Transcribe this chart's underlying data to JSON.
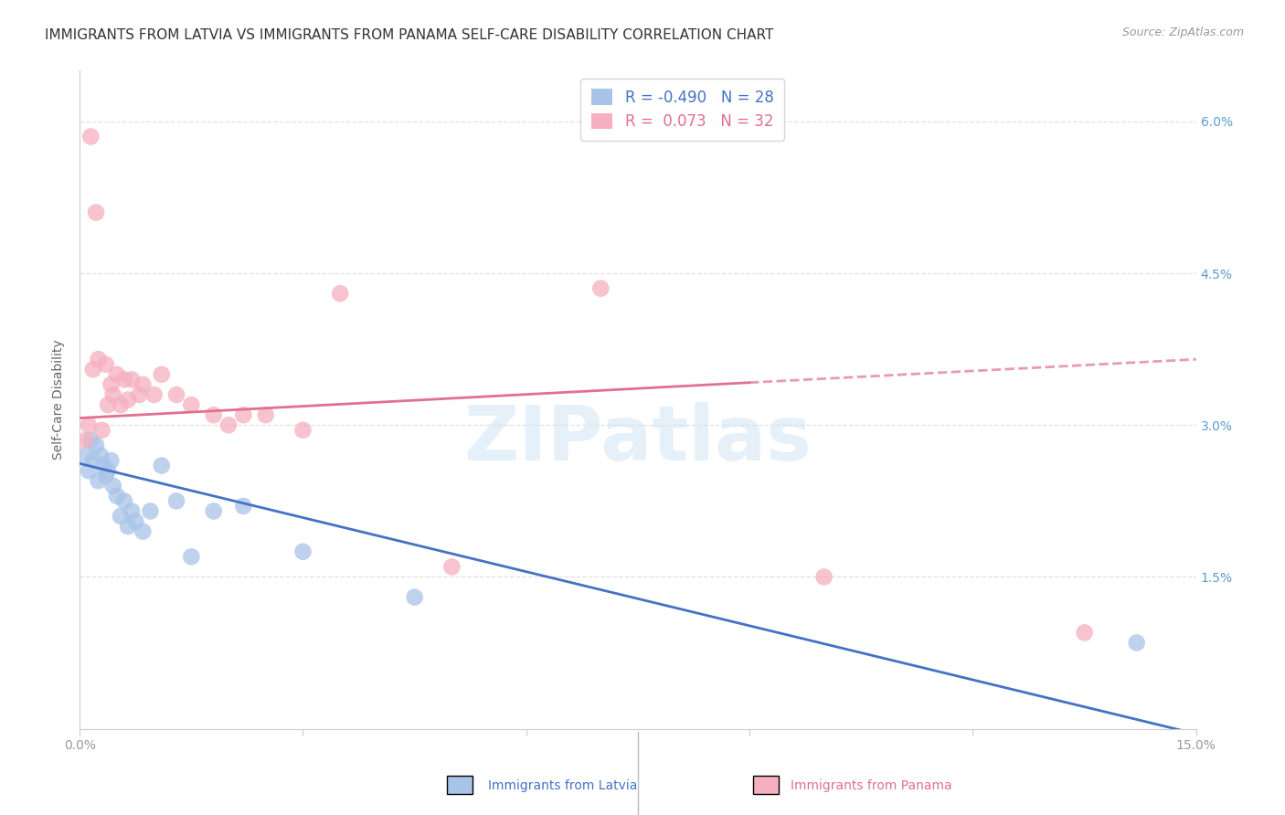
{
  "title": "IMMIGRANTS FROM LATVIA VS IMMIGRANTS FROM PANAMA SELF-CARE DISABILITY CORRELATION CHART",
  "source": "Source: ZipAtlas.com",
  "ylabel": "Self-Care Disability",
  "xlim": [
    0.0,
    15.0
  ],
  "ylim": [
    0.0,
    6.5
  ],
  "yticks": [
    1.5,
    3.0,
    4.5,
    6.0
  ],
  "ytick_labels": [
    "1.5%",
    "3.0%",
    "4.5%",
    "6.0%"
  ],
  "xticks": [
    0.0,
    3.0,
    6.0,
    9.0,
    12.0,
    15.0
  ],
  "xtick_labels": [
    "0.0%",
    "",
    "",
    "",
    "",
    "15.0%"
  ],
  "latvia_color": "#a8c4e8",
  "panama_color": "#f5afc0",
  "latvia_line_color": "#4472c4",
  "panama_line_color": "#e07090",
  "latvia_R": -0.49,
  "latvia_N": 28,
  "panama_R": 0.073,
  "panama_N": 32,
  "watermark": "ZIPatlas",
  "latvia_x": [
    0.08,
    0.12,
    0.15,
    0.18,
    0.22,
    0.25,
    0.28,
    0.32,
    0.35,
    0.38,
    0.42,
    0.45,
    0.5,
    0.55,
    0.6,
    0.65,
    0.7,
    0.75,
    0.85,
    0.95,
    1.1,
    1.3,
    1.5,
    1.8,
    2.2,
    3.0,
    4.5,
    14.2
  ],
  "latvia_y": [
    2.7,
    2.55,
    2.85,
    2.65,
    2.8,
    2.45,
    2.7,
    2.6,
    2.5,
    2.55,
    2.65,
    2.4,
    2.3,
    2.1,
    2.25,
    2.0,
    2.15,
    2.05,
    1.95,
    2.15,
    2.6,
    2.25,
    1.7,
    2.15,
    2.2,
    1.75,
    1.3,
    0.85
  ],
  "panama_x": [
    0.08,
    0.12,
    0.15,
    0.18,
    0.22,
    0.25,
    0.3,
    0.35,
    0.38,
    0.42,
    0.45,
    0.5,
    0.55,
    0.6,
    0.65,
    0.7,
    0.8,
    0.85,
    1.0,
    1.1,
    1.3,
    1.5,
    1.8,
    2.0,
    2.2,
    2.5,
    3.0,
    3.5,
    5.0,
    7.0,
    10.0,
    13.5
  ],
  "panama_y": [
    2.85,
    3.0,
    5.85,
    3.55,
    5.1,
    3.65,
    2.95,
    3.6,
    3.2,
    3.4,
    3.3,
    3.5,
    3.2,
    3.45,
    3.25,
    3.45,
    3.3,
    3.4,
    3.3,
    3.5,
    3.3,
    3.2,
    3.1,
    3.0,
    3.1,
    3.1,
    2.95,
    4.3,
    1.6,
    4.35,
    1.5,
    0.95
  ],
  "latvia_line_x0": 0.0,
  "latvia_line_y0": 2.62,
  "latvia_line_x1": 15.0,
  "latvia_line_y1": -0.05,
  "panama_line_x0": 0.0,
  "panama_line_y0": 3.07,
  "panama_line_x1": 9.0,
  "panama_line_y1": 3.42,
  "panama_dash_x0": 9.0,
  "panama_dash_y0": 3.42,
  "panama_dash_x1": 15.0,
  "panama_dash_y1": 3.65,
  "grid_color": "#e0e0e0",
  "background_color": "#ffffff",
  "title_fontsize": 11,
  "axis_label_fontsize": 10,
  "tick_fontsize": 10,
  "legend_fontsize": 12,
  "right_tick_color": "#5b9bd5"
}
